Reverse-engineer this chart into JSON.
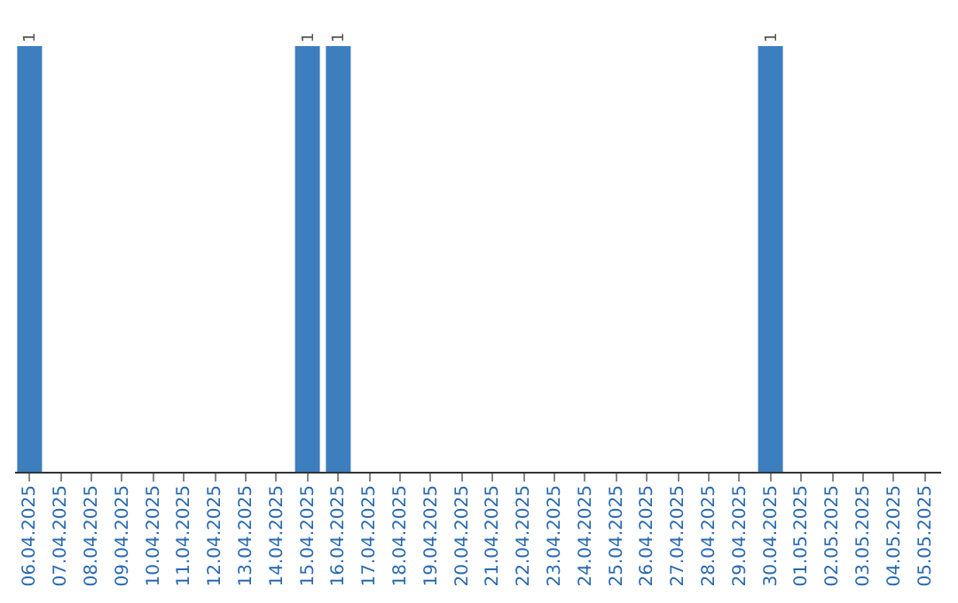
{
  "chart_data": {
    "type": "bar",
    "categories": [
      "06.04.2025",
      "07.04.2025",
      "08.04.2025",
      "09.04.2025",
      "10.04.2025",
      "11.04.2025",
      "12.04.2025",
      "13.04.2025",
      "14.04.2025",
      "15.04.2025",
      "16.04.2025",
      "17.04.2025",
      "18.04.2025",
      "19.04.2025",
      "20.04.2025",
      "21.04.2025",
      "22.04.2025",
      "23.04.2025",
      "24.04.2025",
      "25.04.2025",
      "26.04.2025",
      "27.04.2025",
      "28.04.2025",
      "29.04.2025",
      "30.04.2025",
      "01.05.2025",
      "02.05.2025",
      "03.05.2025",
      "04.05.2025",
      "05.05.2025"
    ],
    "values": [
      1,
      0,
      0,
      0,
      0,
      0,
      0,
      0,
      0,
      1,
      1,
      0,
      0,
      0,
      0,
      0,
      0,
      0,
      0,
      0,
      0,
      0,
      0,
      0,
      1,
      0,
      0,
      0,
      0,
      0
    ],
    "value_labels": [
      "1",
      null,
      null,
      null,
      null,
      null,
      null,
      null,
      null,
      "1",
      "1",
      null,
      null,
      null,
      null,
      null,
      null,
      null,
      null,
      null,
      null,
      null,
      null,
      null,
      "1",
      null,
      null,
      null,
      null,
      null
    ],
    "color": "#3d7ebf",
    "tick_labels": "x",
    "grid": false
  }
}
